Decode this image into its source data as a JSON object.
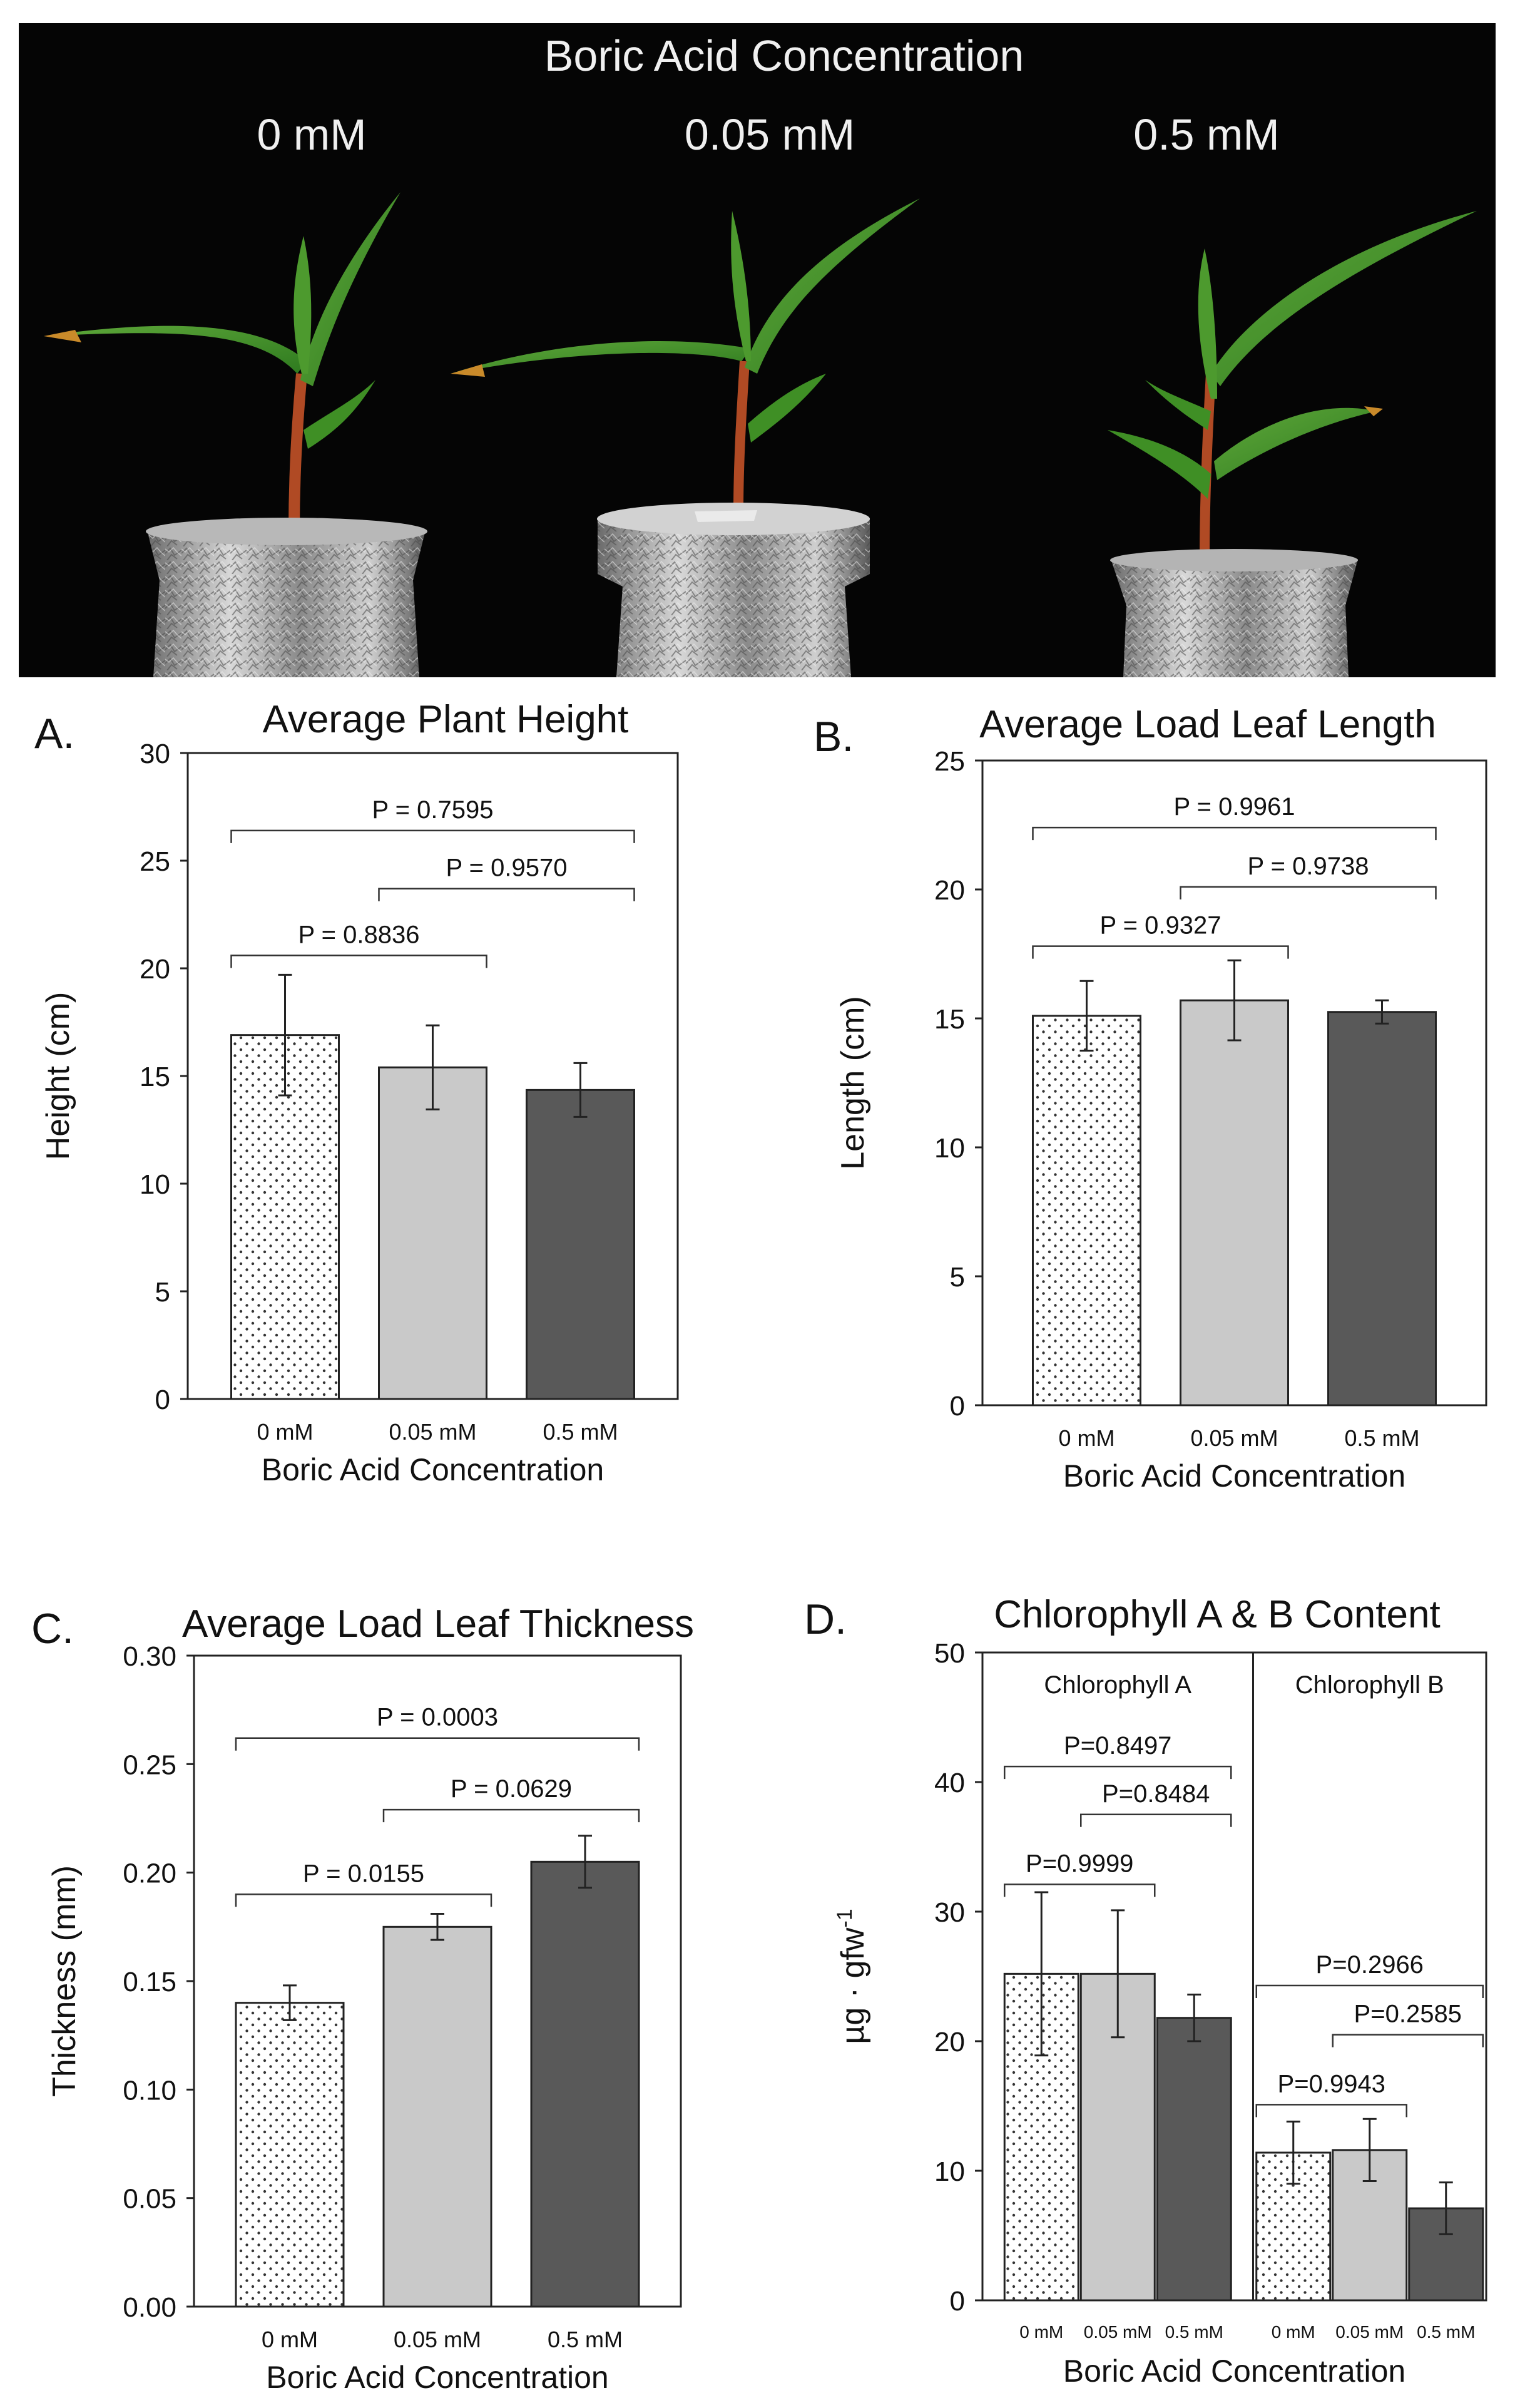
{
  "photo": {
    "title": "Boric Acid Concentration",
    "plants": [
      {
        "label": "0 mM"
      },
      {
        "label": "0.05 mM"
      },
      {
        "label": "0.5 mM"
      }
    ]
  },
  "colors": {
    "bar_light": "#c9c9c9",
    "bar_dark": "#595959",
    "bar_dotted_bg": "#ffffff",
    "dot": "#333333",
    "axis": "#222222",
    "photo_bg": "#050505"
  },
  "chart_data": [
    {
      "panel": "A.",
      "type": "bar",
      "title": "Average Plant Height",
      "xlabel": "Boric Acid Concentration",
      "ylabel": "Height (cm)",
      "ylim": [
        0,
        30
      ],
      "yticks": [
        0,
        5,
        10,
        15,
        20,
        25,
        30
      ],
      "ytick_labels": [
        "0",
        "5",
        "10",
        "15",
        "20",
        "25",
        "30"
      ],
      "categories": [
        "0 mM",
        "0.05 mM",
        "0.5 mM"
      ],
      "values": [
        16.9,
        15.4,
        14.35
      ],
      "errors": [
        2.8,
        1.95,
        1.25
      ],
      "comparisons": [
        {
          "from": 0,
          "to": 2,
          "y": 26.4,
          "label": "P = 0.7595"
        },
        {
          "from": 1,
          "to": 2,
          "y": 23.7,
          "label": "P = 0.9570"
        },
        {
          "from": 0,
          "to": 1,
          "y": 20.6,
          "label": "P = 0.8836"
        }
      ]
    },
    {
      "panel": "B.",
      "type": "bar",
      "title": "Average Load Leaf Length",
      "xlabel": "Boric Acid Concentration",
      "ylabel": "Length (cm)",
      "ylim": [
        0,
        25
      ],
      "yticks": [
        0,
        5,
        10,
        15,
        20,
        25
      ],
      "ytick_labels": [
        "0",
        "5",
        "10",
        "15",
        "20",
        "25"
      ],
      "categories": [
        "0 mM",
        "0.05 mM",
        "0.5 mM"
      ],
      "values": [
        15.1,
        15.7,
        15.25
      ],
      "errors": [
        1.35,
        1.55,
        0.45
      ],
      "comparisons": [
        {
          "from": 0,
          "to": 2,
          "y": 22.4,
          "label": "P = 0.9961"
        },
        {
          "from": 1,
          "to": 2,
          "y": 20.1,
          "label": "P = 0.9738"
        },
        {
          "from": 0,
          "to": 1,
          "y": 17.8,
          "label": "P = 0.9327"
        }
      ]
    },
    {
      "panel": "C.",
      "type": "bar",
      "title": "Average Load Leaf Thickness",
      "xlabel": "Boric Acid Concentration",
      "ylabel": "Thickness (mm)",
      "ylim": [
        0,
        0.3
      ],
      "yticks": [
        0,
        0.05,
        0.1,
        0.15,
        0.2,
        0.25,
        0.3
      ],
      "ytick_labels": [
        "0.00",
        "0.05",
        "0.10",
        "0.15",
        "0.20",
        "0.25",
        "0.30"
      ],
      "categories": [
        "0 mM",
        "0.05 mM",
        "0.5 mM"
      ],
      "values": [
        0.14,
        0.175,
        0.205
      ],
      "errors": [
        0.008,
        0.006,
        0.012
      ],
      "comparisons": [
        {
          "from": 0,
          "to": 2,
          "y": 0.262,
          "label": "P = 0.0003"
        },
        {
          "from": 1,
          "to": 2,
          "y": 0.229,
          "label": "P = 0.0629"
        },
        {
          "from": 0,
          "to": 1,
          "y": 0.19,
          "label": "P = 0.0155"
        }
      ]
    },
    {
      "panel": "D.",
      "type": "bar",
      "title": "Chlorophyll A & B Content",
      "xlabel": "Boric Acid Concentration",
      "ylabel": "µg · gfw",
      "ylabel_superscript": "-1",
      "ylim": [
        0,
        50
      ],
      "yticks": [
        0,
        10,
        20,
        30,
        40,
        50
      ],
      "ytick_labels": [
        "0",
        "10",
        "20",
        "30",
        "40",
        "50"
      ],
      "categories": [
        "0 mM",
        "0.05 mM",
        "0.5 mM"
      ],
      "groups": [
        {
          "name": "Chlorophyll A",
          "values": [
            25.2,
            25.2,
            21.8
          ],
          "errors": [
            6.3,
            4.9,
            1.8
          ],
          "comparisons": [
            {
              "from": 0,
              "to": 2,
              "y": 41.2,
              "label": "P=0.8497"
            },
            {
              "from": 1,
              "to": 2,
              "y": 37.5,
              "label": "P=0.8484"
            },
            {
              "from": 0,
              "to": 1,
              "y": 32.1,
              "label": "P=0.9999"
            }
          ]
        },
        {
          "name": "Chlorophyll B",
          "values": [
            11.4,
            11.6,
            7.1
          ],
          "errors": [
            2.4,
            2.4,
            2.0
          ],
          "comparisons": [
            {
              "from": 0,
              "to": 2,
              "y": 24.3,
              "label": "P=0.2966"
            },
            {
              "from": 1,
              "to": 2,
              "y": 20.5,
              "label": "P=0.2585"
            },
            {
              "from": 0,
              "to": 1,
              "y": 15.1,
              "label": "P=0.9943"
            }
          ]
        }
      ]
    }
  ]
}
